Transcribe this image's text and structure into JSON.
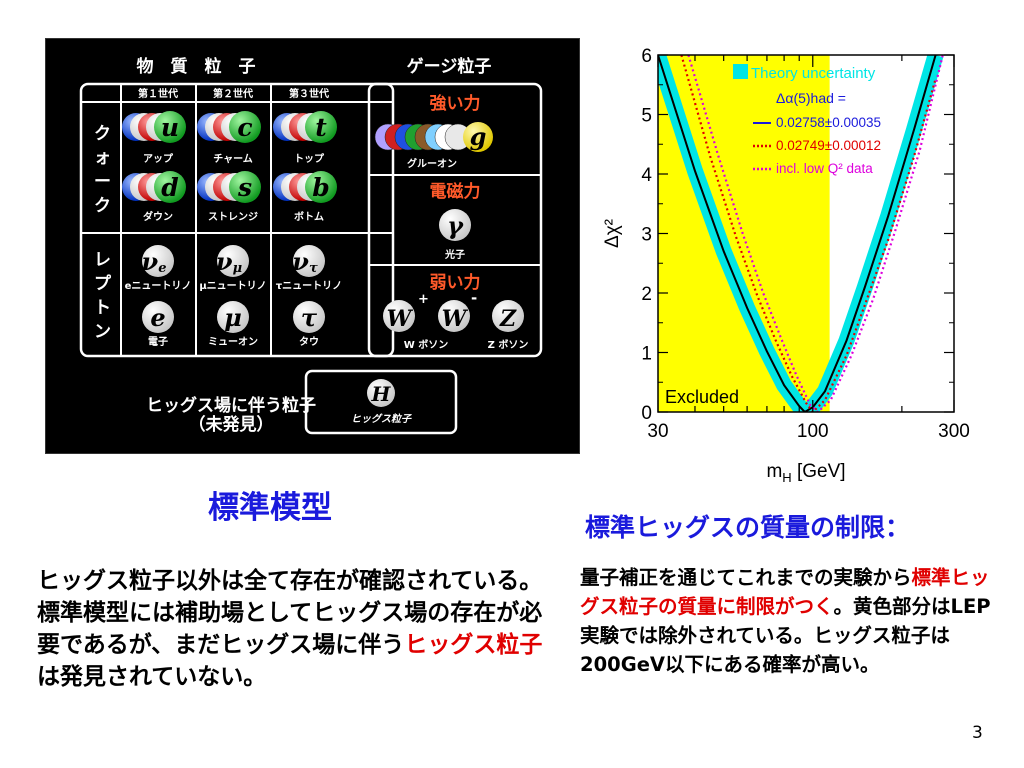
{
  "diagram": {
    "header_matter": "物　質　粒　子",
    "header_gauge": "ゲージ粒子",
    "gen1": "第１世代",
    "gen2": "第２世代",
    "gen3": "第３世代",
    "quark_label": "クォーク",
    "lepton_label": "レプトン",
    "quarks": [
      {
        "sym": "u",
        "name": "アップ",
        "color": "#1faf38"
      },
      {
        "sym": "c",
        "name": "チャーム",
        "color": "#1faf38"
      },
      {
        "sym": "t",
        "name": "トップ",
        "color": "#1faf38"
      },
      {
        "sym": "d",
        "name": "ダウン",
        "color": "#1faf38"
      },
      {
        "sym": "s",
        "name": "ストレンジ",
        "color": "#1faf38"
      },
      {
        "sym": "b",
        "name": "ボトム",
        "color": "#1faf38"
      }
    ],
    "leptons": [
      {
        "sym": "νe",
        "name": "eニュートリノ"
      },
      {
        "sym": "νμ",
        "name": "μニュートリノ"
      },
      {
        "sym": "ντ",
        "name": "τニュートリノ"
      },
      {
        "sym": "e",
        "name": "電子"
      },
      {
        "sym": "μ",
        "name": "ミューオン"
      },
      {
        "sym": "τ",
        "name": "タウ"
      }
    ],
    "strong_force": "強い力",
    "gluon_sym": "g",
    "gluon_name": "グルーオン",
    "em_force": "電磁力",
    "photon_sym": "γ",
    "photon_name": "光子",
    "weak_force": "弱い力",
    "w_sym": "W",
    "w_plus": "+",
    "w_minus": "-",
    "z_sym": "Z",
    "w_name": "W ボソン",
    "z_name": "Z ボソン",
    "higgs_field_line1": "ヒッグス場に伴う粒子",
    "higgs_field_line2": "（未発見）",
    "higgs_sym": "H",
    "higgs_name": "ヒッグス粒子",
    "force_color": "#ff5a2a"
  },
  "left_title": "標準模型",
  "right_title": "標準ヒッグスの質量の制限：",
  "left_text": {
    "part1": "ヒッグス粒子以外は全て存在が確認されている。標準模型には補助場としてヒッグス場の存在が必要であるが、まだヒッグス場に伴う",
    "red": "ヒッグス粒子",
    "part2": "は発見されていない。"
  },
  "right_text": {
    "part1": "量子補正を通じてこれまでの実験から",
    "red": "標準ヒッグス粒子の質量に制限がつく",
    "part2": "。黄色部分はLEP実験では除外されている。ヒッグス粒子は200GeV以下にある確率が高い。"
  },
  "page_number": "3",
  "chart_data": {
    "type": "line",
    "xlabel": "m_H [GeV]",
    "ylabel": "Δχ²",
    "x_scale": "log",
    "xlim": [
      30,
      300
    ],
    "ylim": [
      0,
      6
    ],
    "x_ticks": [
      "30",
      "100",
      "300"
    ],
    "y_ticks": [
      "0",
      "1",
      "2",
      "3",
      "4",
      "5",
      "6"
    ],
    "excluded_region": {
      "x": [
        30,
        114
      ],
      "label": "Excluded",
      "color": "#ffff00"
    },
    "legend": {
      "placement": "top-right",
      "theory_uncertainty": "Theory uncertainty",
      "alpha_header": "Δα(5)had =",
      "entries": [
        {
          "text": "0.02758±0.00035",
          "color": "#1a1adc",
          "style": "solid"
        },
        {
          "text": "0.02749±0.00012",
          "color": "#e00000",
          "style": "dotted"
        },
        {
          "text": "incl. low Q² data",
          "color": "#dd00dd",
          "style": "dotted"
        }
      ]
    },
    "band_color": "#00e5e5",
    "series": [
      {
        "name": "0.02758±0.00035",
        "color": "#000000",
        "style": "solid",
        "x": [
          30,
          40,
          50,
          60,
          70,
          80,
          90,
          94,
          100,
          110,
          130,
          150,
          180,
          220,
          260
        ],
        "y": [
          6,
          4.05,
          2.7,
          1.75,
          1.02,
          0.45,
          0.1,
          0.0,
          0.08,
          0.35,
          1.2,
          2.1,
          3.3,
          4.75,
          6
        ]
      },
      {
        "name": "0.02749±0.00012",
        "color": "#e00000",
        "style": "dotted",
        "x": [
          36,
          45,
          55,
          65,
          75,
          85,
          95,
          100,
          110,
          130,
          150,
          180,
          220,
          260
        ],
        "y": [
          6,
          4.3,
          2.95,
          1.95,
          1.2,
          0.6,
          0.15,
          0.0,
          0.2,
          0.95,
          1.8,
          2.9,
          4.3,
          5.6
        ]
      },
      {
        "name": "incl. low Q² data",
        "color": "#dd00dd",
        "style": "dotted",
        "x": [
          38,
          48,
          58,
          68,
          78,
          88,
          98,
          104,
          115,
          135,
          160,
          190,
          230,
          275
        ],
        "y": [
          6,
          4.3,
          3.0,
          2.0,
          1.25,
          0.62,
          0.12,
          0.0,
          0.2,
          0.95,
          1.9,
          3.05,
          4.4,
          6
        ]
      }
    ]
  }
}
